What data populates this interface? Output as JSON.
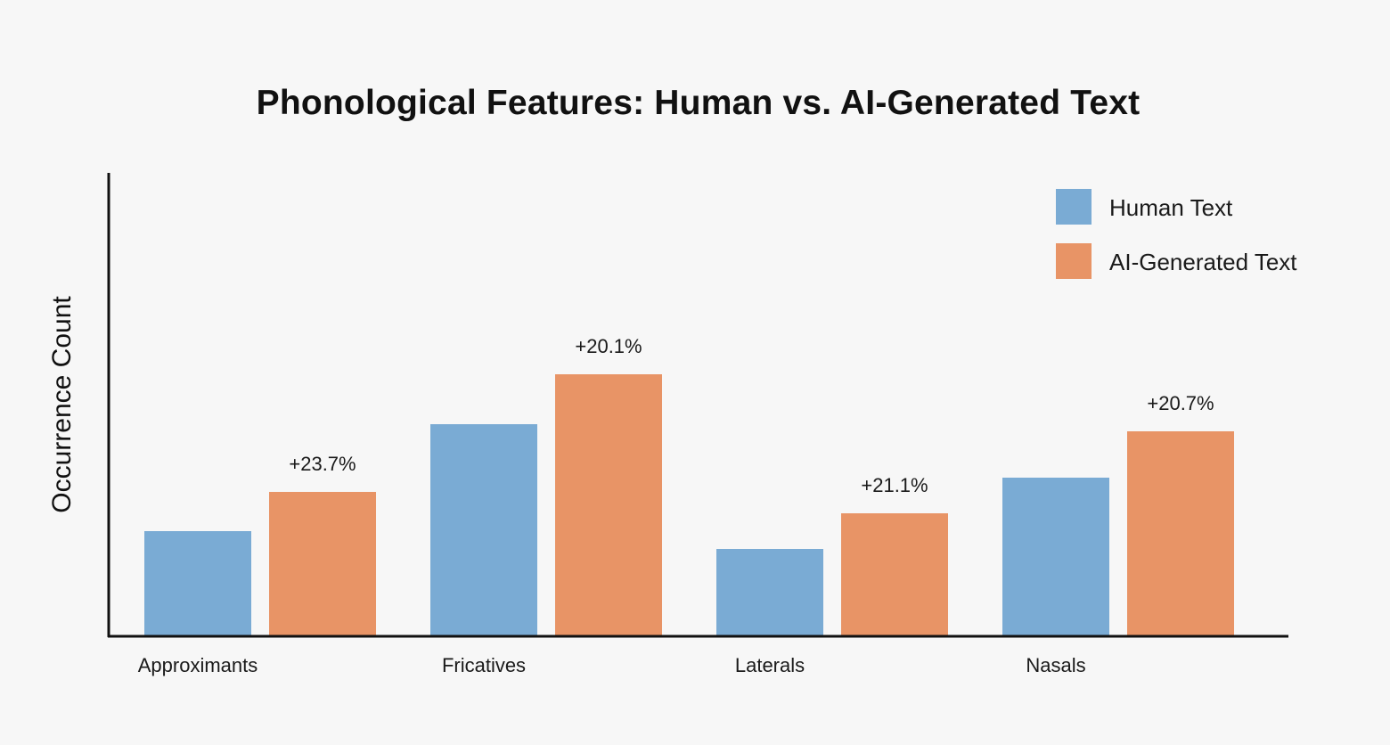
{
  "chart_data": {
    "type": "bar",
    "title": "Phonological Features: Human vs. AI-Generated Text",
    "xlabel": "",
    "ylabel": "Occurrence Count",
    "categories": [
      "Approximants",
      "Fricatives",
      "Laterals",
      "Nasals"
    ],
    "series": [
      {
        "name": "Human Text",
        "color": "#7aabd4",
        "values": [
          118,
          238,
          98,
          178
        ]
      },
      {
        "name": "AI-Generated Text",
        "color": "#e89466",
        "values": [
          162,
          294,
          138,
          230
        ]
      }
    ],
    "annotations": [
      "+23.7%",
      "+20.1%",
      "+21.1%",
      "+20.7%"
    ],
    "ylim": [
      0,
      520
    ],
    "legend_position": "top-right",
    "grid": false,
    "y_ticks_visible": false
  }
}
